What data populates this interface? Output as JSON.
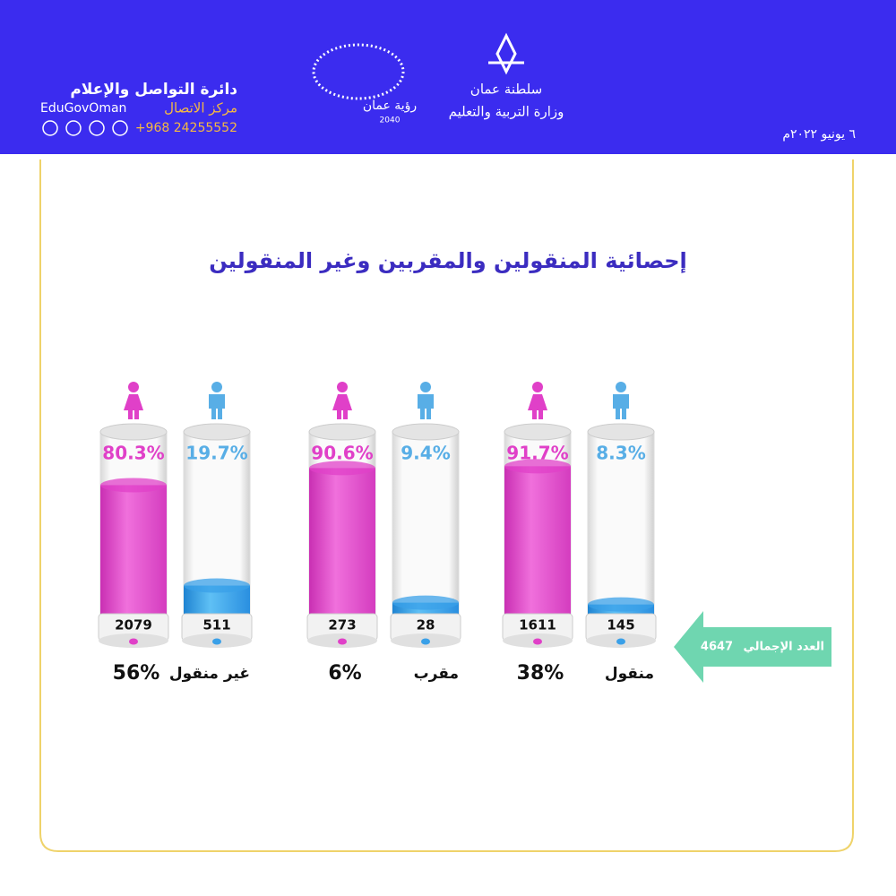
{
  "header": {
    "department": "دائرة التواصل والإعلام",
    "handle": "EduGovOman",
    "contact_label": "مركز الاتصال",
    "phone": "+968 24255552",
    "vision": "رؤية عمان",
    "vision_year": "2040",
    "sultanate": "سلطنة عمان",
    "ministry": "وزارة التربية والتعليم",
    "date": "٦ يونيو ٢٠٢٢م"
  },
  "title": "إحصائية المنقولين والمقربين وغير المنقولين",
  "groups": [
    {
      "label": "غير منقول",
      "share": 56,
      "share_label": "56%",
      "female": {
        "percent": 80.3,
        "percent_label": "80.3%",
        "count": 2079
      },
      "male": {
        "percent": 19.7,
        "percent_label": "19.7%",
        "count": 511
      }
    },
    {
      "label": "مقرب",
      "share": 6,
      "share_label": "6%",
      "female": {
        "percent": 90.6,
        "percent_label": "90.6%",
        "count": 273
      },
      "male": {
        "percent": 9.4,
        "percent_label": "9.4%",
        "count": 28
      }
    },
    {
      "label": "منقول",
      "share": 38,
      "share_label": "38%",
      "female": {
        "percent": 91.7,
        "percent_label": "91.7%",
        "count": 1611
      },
      "male": {
        "percent": 8.3,
        "percent_label": "8.3%",
        "count": 145
      }
    }
  ],
  "total": {
    "label": "العدد الإجمالي",
    "value": 4647
  }
}
